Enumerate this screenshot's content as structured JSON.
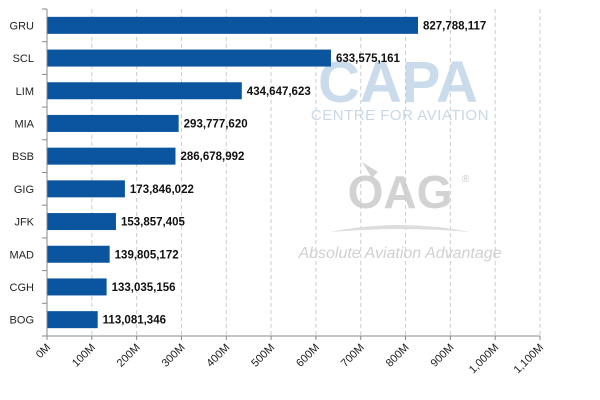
{
  "chart_data": {
    "type": "bar",
    "orientation": "horizontal",
    "categories": [
      "GRU",
      "SCL",
      "LIM",
      "MIA",
      "BSB",
      "GIG",
      "JFK",
      "MAD",
      "CGH",
      "BOG"
    ],
    "values": [
      827788117,
      633575161,
      434647623,
      293777620,
      286678992,
      173846022,
      153857405,
      139805172,
      133035156,
      113081346
    ],
    "value_labels": [
      "827,788,117",
      "633,575,161",
      "434,647,623",
      "293,777,620",
      "286,678,992",
      "173,846,022",
      "153,857,405",
      "139,805,172",
      "133,035,156",
      "113,081,346"
    ],
    "title": "",
    "xlabel": "",
    "ylabel": "",
    "xlim": [
      0,
      1100000000
    ],
    "x_ticks": [
      0,
      100000000,
      200000000,
      300000000,
      400000000,
      500000000,
      600000000,
      700000000,
      800000000,
      900000000,
      1000000000,
      1100000000
    ],
    "x_tick_labels": [
      "0M",
      "100M",
      "200M",
      "300M",
      "400M",
      "500M",
      "600M",
      "700M",
      "800M",
      "900M",
      "1,000M",
      "1,100M"
    ],
    "grid": "vertical dashed",
    "legend": "none",
    "bar_color": "#0b559f"
  },
  "watermarks": {
    "capa": "CAPA",
    "capa_sub": "CENTRE FOR AVIATION",
    "oag": "OAG",
    "oag_reg": "®",
    "oag_tagline": "Absolute Aviation Advantage"
  }
}
